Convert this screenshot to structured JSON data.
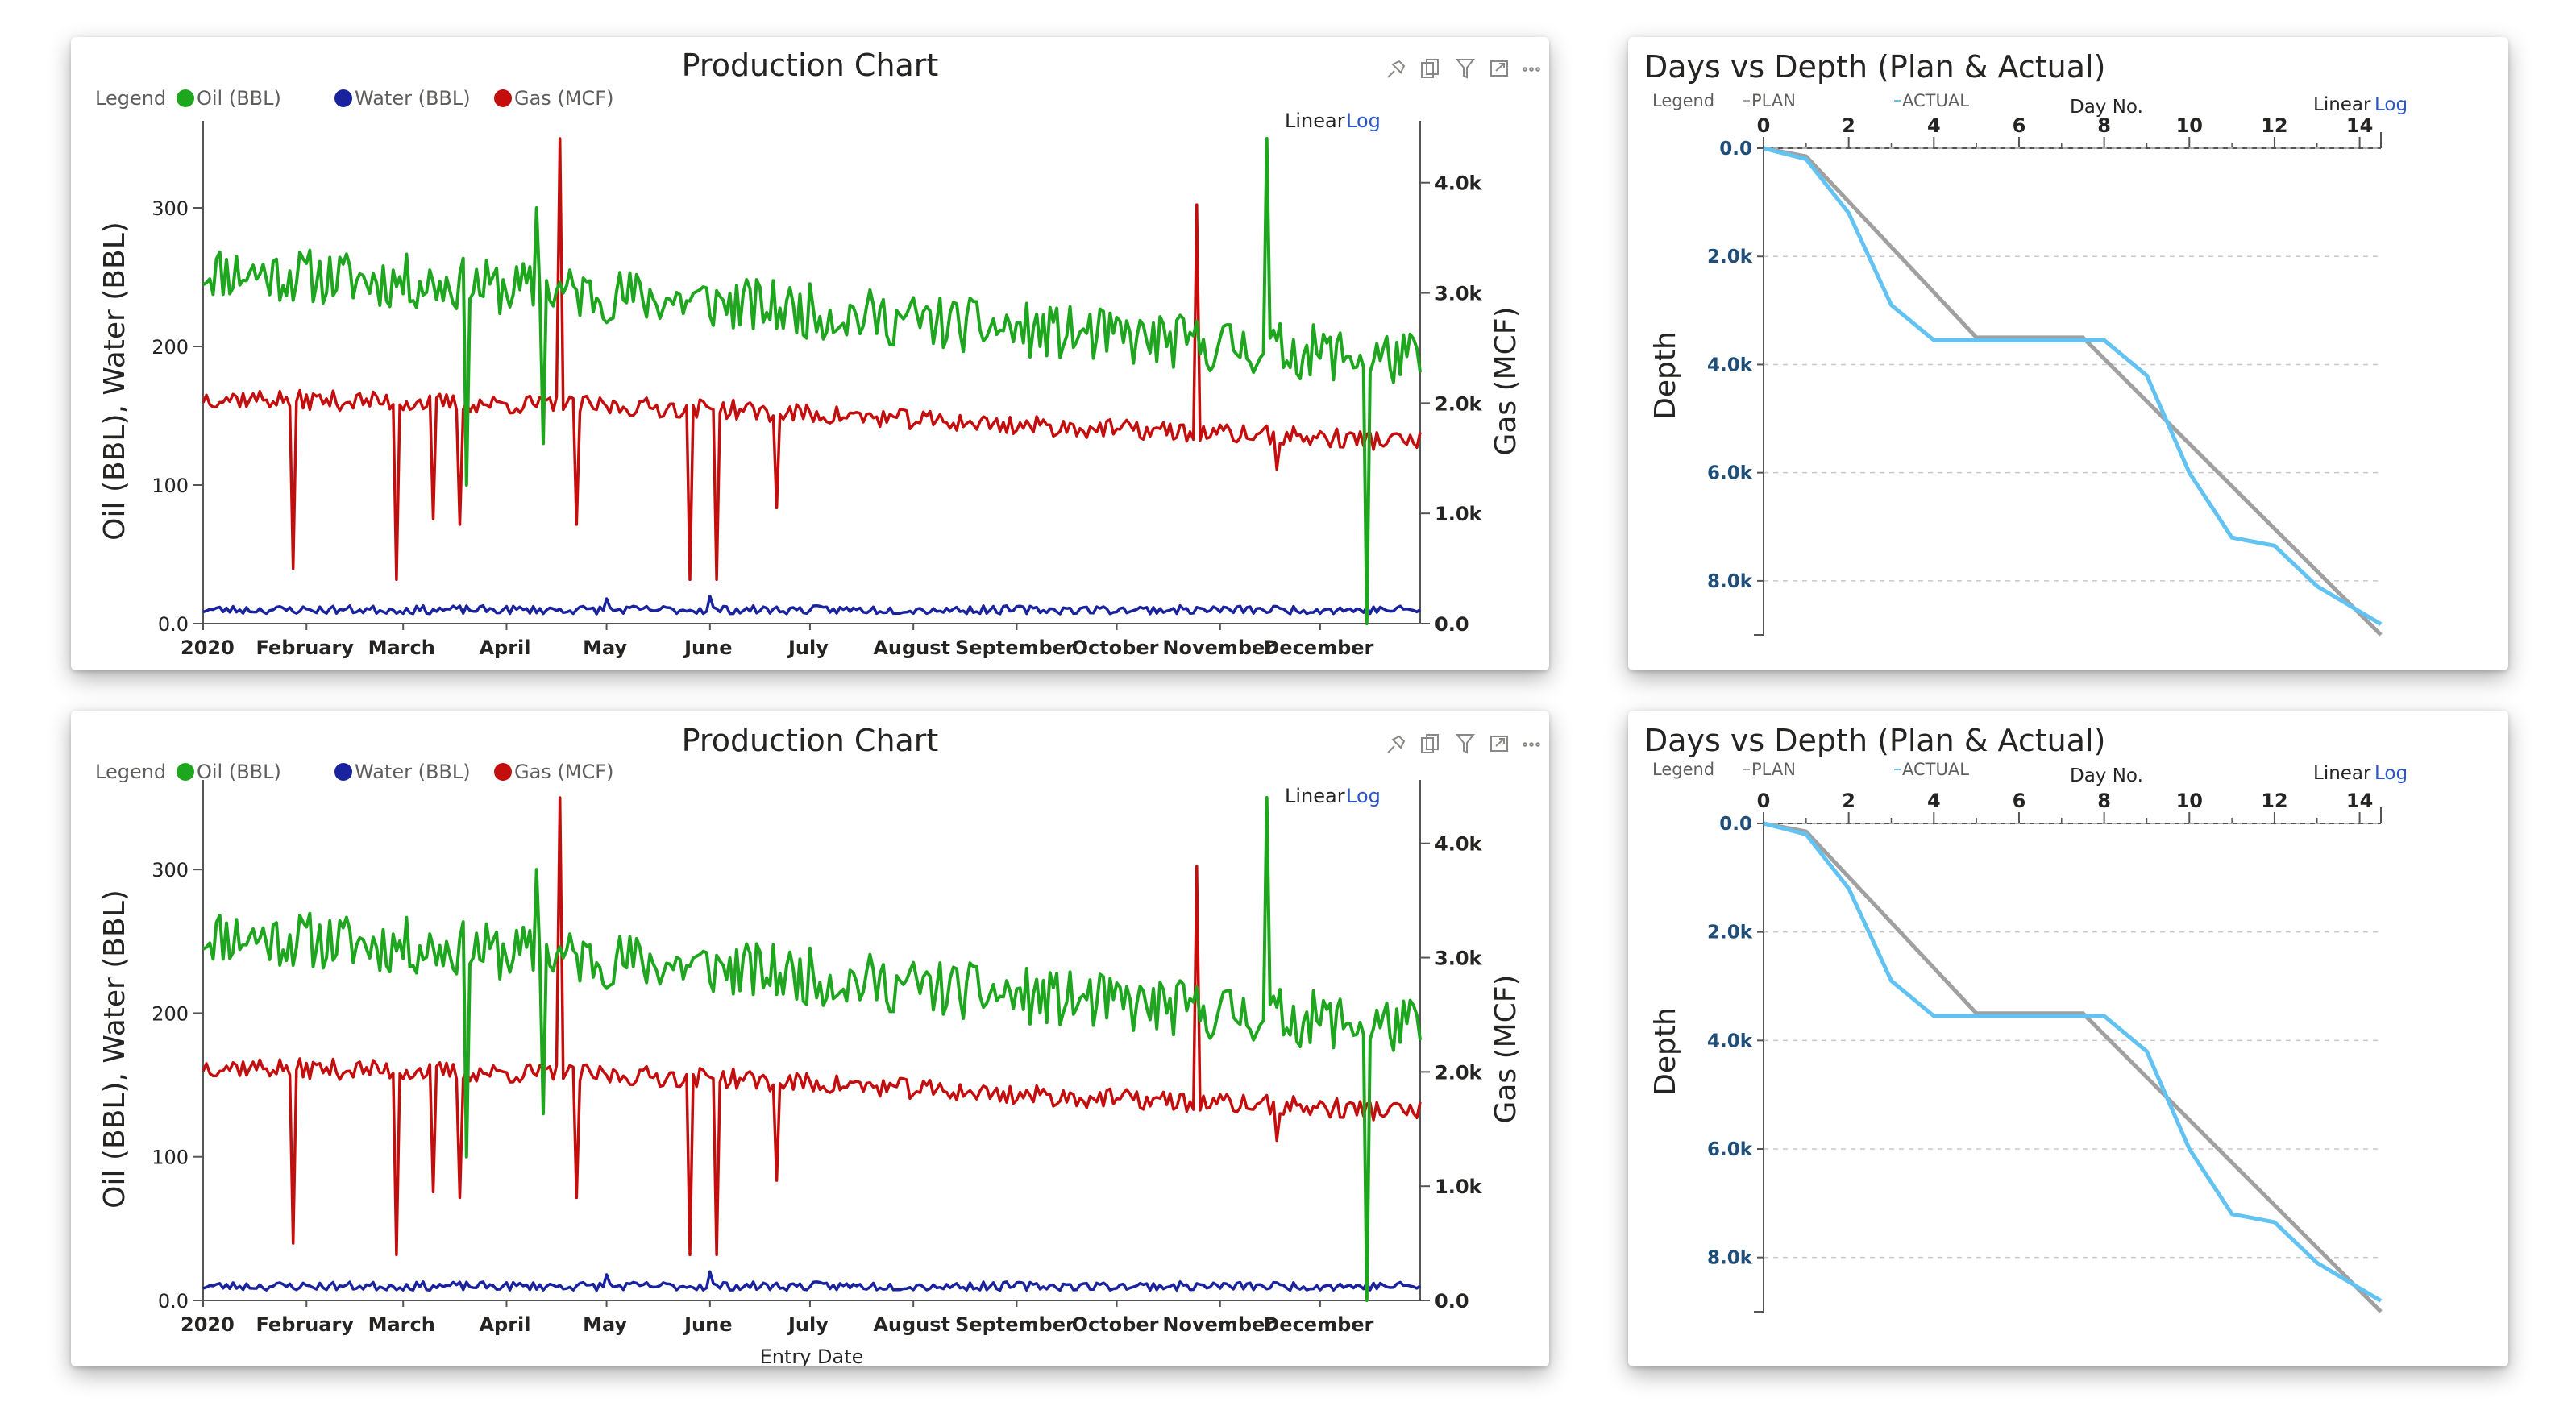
{
  "production": {
    "title": "Production Chart",
    "legend_label": "Legend",
    "series_labels": [
      "Oil (BBL)",
      "Water (BBL)",
      "Gas (MCF)"
    ],
    "colors": {
      "oil": "#1ea61e",
      "water": "#1a239e",
      "gas": "#c40e0e"
    },
    "scale_linear": "Linear",
    "scale_log": "Log",
    "y_left_label": "Oil (BBL), Water (BBL)",
    "y_right_label": "Gas (MCF)",
    "x_label": "Entry Date",
    "left_ticks": [
      "0.0",
      "100",
      "200",
      "300"
    ],
    "right_ticks": [
      "0.0",
      "1.0k",
      "2.0k",
      "3.0k",
      "4.0k"
    ],
    "month_ticks": [
      "2020",
      "February",
      "March",
      "April",
      "May",
      "June",
      "July",
      "August",
      "September",
      "October",
      "November",
      "December"
    ],
    "icons": [
      "pin-icon",
      "copy-icon",
      "filter-icon",
      "focus-icon",
      "more-icon"
    ]
  },
  "depth": {
    "title": "Days vs Depth (Plan & Actual)",
    "legend_label": "Legend",
    "plan_label": "PLAN",
    "actual_label": "ACTUAL",
    "x_label": "Day No.",
    "y_label": "Depth",
    "scale_linear": "Linear",
    "scale_log": "Log",
    "x_ticks": [
      "0",
      "2",
      "4",
      "6",
      "8",
      "10",
      "12",
      "14"
    ],
    "y_ticks": [
      "0.0",
      "2.0k",
      "4.0k",
      "6.0k",
      "8.0k"
    ],
    "colors": {
      "plan": "#a0a0a0",
      "actual": "#62c3f2"
    }
  },
  "chart_data": [
    {
      "type": "line",
      "title": "Production Chart",
      "xlabel": "Entry Date",
      "ylabel": "Oil (BBL), Water (BBL)",
      "y2label": "Gas (MCF)",
      "x_range": [
        "2020-01-01",
        "2020-12-31"
      ],
      "ylim": [
        0,
        350
      ],
      "y2lim": [
        0,
        4400
      ],
      "legend_position": "top-left",
      "series": [
        {
          "name": "Oil (BBL)",
          "axis": "left",
          "color": "#1ea61e",
          "trend": [
            [
              "2020-01-01",
              255
            ],
            [
              "2020-03-15",
              245
            ],
            [
              "2020-06-01",
              232
            ],
            [
              "2020-09-01",
              212
            ],
            [
              "2020-12-31",
              190
            ]
          ],
          "spikes": [
            [
              "2020-03-20",
              100
            ],
            [
              "2020-04-10",
              300
            ],
            [
              "2020-04-12",
              130
            ],
            [
              "2020-11-15",
              350
            ],
            [
              "2020-12-15",
              0
            ]
          ]
        },
        {
          "name": "Water (BBL)",
          "axis": "left",
          "color": "#1a239e",
          "trend": [
            [
              "2020-01-01",
              10
            ],
            [
              "2020-12-31",
              10
            ]
          ],
          "spikes": [
            [
              "2020-05-01",
              18
            ],
            [
              "2020-06-01",
              20
            ]
          ]
        },
        {
          "name": "Gas (MCF)",
          "axis": "right",
          "color": "#c40e0e",
          "trend": [
            [
              "2020-01-01",
              2050
            ],
            [
              "2020-06-01",
              1950
            ],
            [
              "2020-09-01",
              1800
            ],
            [
              "2020-12-31",
              1650
            ]
          ],
          "spikes": [
            [
              "2020-01-28",
              500
            ],
            [
              "2020-02-28",
              400
            ],
            [
              "2020-03-10",
              950
            ],
            [
              "2020-03-18",
              900
            ],
            [
              "2020-04-17",
              4400
            ],
            [
              "2020-04-22",
              900
            ],
            [
              "2020-05-26",
              400
            ],
            [
              "2020-06-03",
              400
            ],
            [
              "2020-06-21",
              1050
            ],
            [
              "2020-10-25",
              3800
            ],
            [
              "2020-11-18",
              1400
            ]
          ]
        }
      ]
    },
    {
      "type": "line",
      "title": "Days vs Depth (Plan & Actual)",
      "xlabel": "Day No.",
      "ylabel": "Depth",
      "xlim": [
        0,
        14.5
      ],
      "ylim": [
        0,
        9000
      ],
      "y_inverted": true,
      "legend_position": "top-left",
      "series": [
        {
          "name": "PLAN",
          "color": "#a0a0a0",
          "x": [
            0,
            1,
            5,
            7.5,
            14.5
          ],
          "y": [
            0,
            150,
            3500,
            3500,
            9000
          ]
        },
        {
          "name": "ACTUAL",
          "color": "#62c3f2",
          "x": [
            0,
            1,
            2,
            3,
            4,
            5,
            6,
            7,
            8,
            9,
            10,
            11,
            12,
            13,
            14.5
          ],
          "y": [
            0,
            200,
            1200,
            2900,
            3550,
            3550,
            3550,
            3550,
            3550,
            4200,
            6000,
            7200,
            7350,
            8100,
            8800
          ]
        }
      ]
    }
  ]
}
